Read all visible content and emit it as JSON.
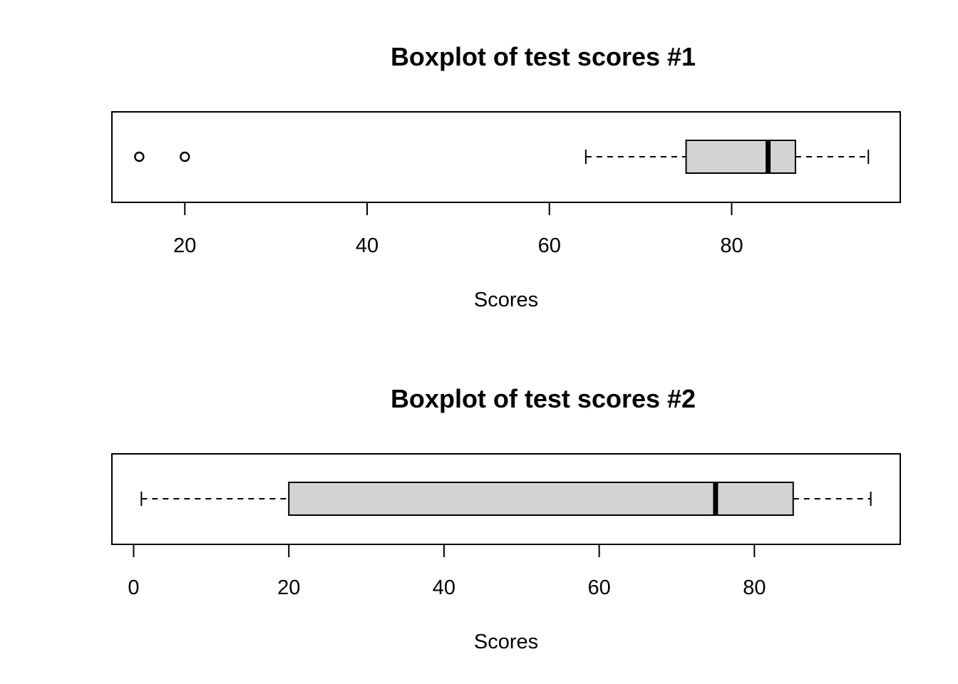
{
  "colors": {
    "box_fill": "#d3d3d3",
    "line": "#000000",
    "background": "#ffffff"
  },
  "chart_data": [
    {
      "type": "boxplot",
      "orientation": "horizontal",
      "title": "Boxplot of test scores #1",
      "xlabel": "Scores",
      "xlim": [
        12,
        98.5
      ],
      "ticks": [
        20,
        40,
        60,
        80
      ],
      "stats": {
        "whisker_low": 64,
        "q1": 75,
        "median": 84,
        "q3": 87,
        "whisker_high": 95
      },
      "outliers": [
        15,
        20
      ]
    },
    {
      "type": "boxplot",
      "orientation": "horizontal",
      "title": "Boxplot of test scores #2",
      "xlabel": "Scores",
      "xlim": [
        -2.8,
        98.8
      ],
      "ticks": [
        0,
        20,
        40,
        60,
        80
      ],
      "stats": {
        "whisker_low": 1,
        "q1": 20,
        "median": 75,
        "q3": 85,
        "whisker_high": 95
      },
      "outliers": []
    }
  ]
}
